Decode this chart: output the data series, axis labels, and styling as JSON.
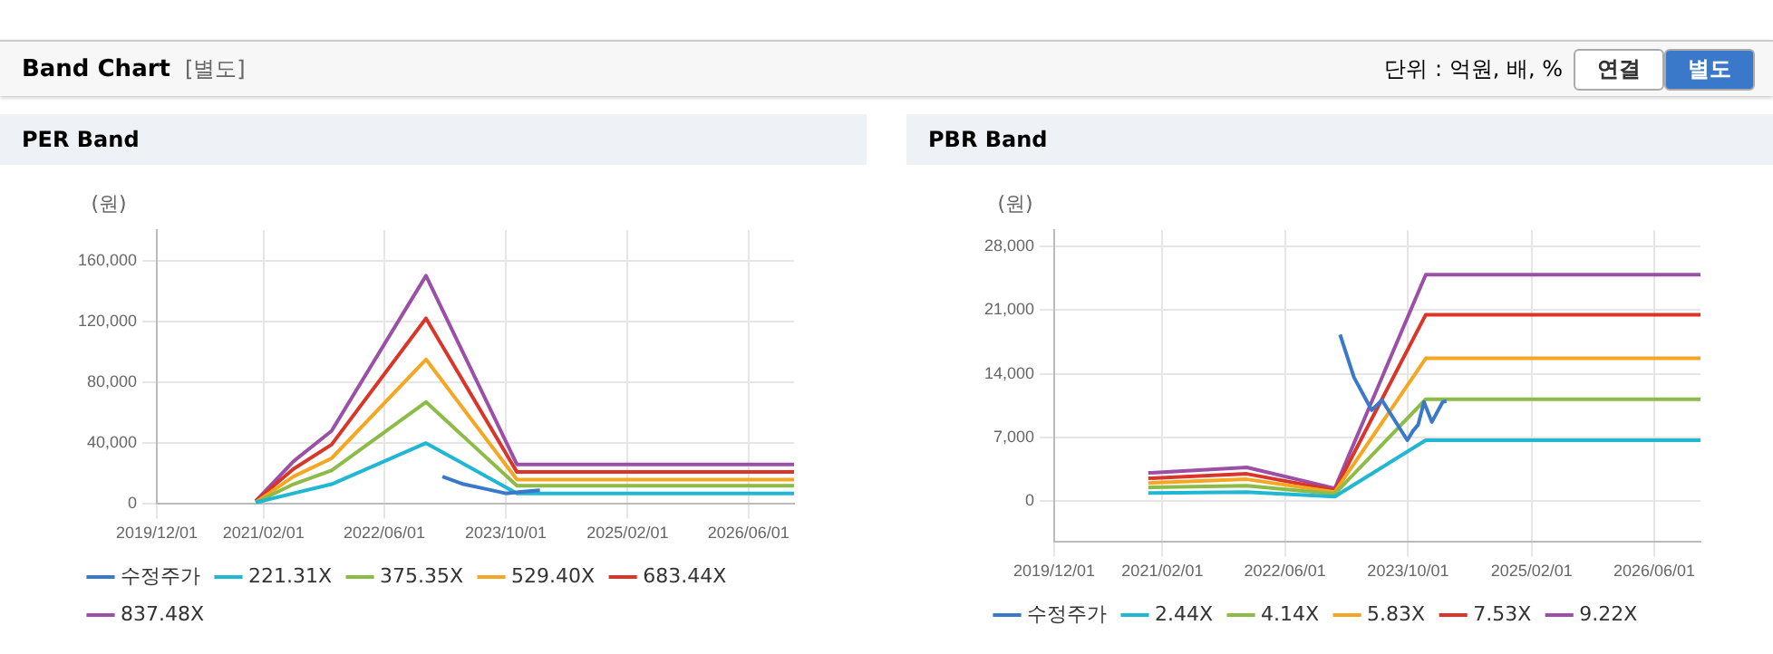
{
  "chart_data": [
    {
      "type": "other",
      "title": "Band Chart",
      "subtitle": "[별도]",
      "annotations": [
        "단위 : 억원, 배, %",
        "연결",
        "별도"
      ]
    },
    {
      "type": "line",
      "title": "PER Band",
      "ylabel": "(원)",
      "grid": true,
      "legend": "bottom",
      "marker": "none",
      "line_style": "solid",
      "x": [
        "2021-01-01",
        "2021-06-01",
        "2021-11-01",
        "2022-11-15",
        "2023-11-15",
        "2026-12-01"
      ],
      "xlim": [
        "2019-12-01",
        "2026-12-01"
      ],
      "xticks": [
        {
          "value": "2019-12-01",
          "label": "2019/12/01"
        },
        {
          "value": "2021-02-01",
          "label": "2021/02/01"
        },
        {
          "value": "2022-06-01",
          "label": "2022/06/01"
        },
        {
          "value": "2023-10-01",
          "label": "2023/10/01"
        },
        {
          "value": "2025-02-01",
          "label": "2025/02/01"
        },
        {
          "value": "2026-06-01",
          "label": "2026/06/01"
        }
      ],
      "ylim": [
        0,
        180000
      ],
      "yticks": [
        {
          "value": 0,
          "label": "0"
        },
        {
          "value": 40000,
          "label": "40,000"
        },
        {
          "value": 80000,
          "label": "80,000"
        },
        {
          "value": 120000,
          "label": "120,000"
        },
        {
          "value": 160000,
          "label": "160,000"
        }
      ],
      "series": [
        {
          "name": "수정주가",
          "color": "#3a78c9",
          "x": [
            "2023-01-20",
            "2023-04-15",
            "2023-07-10",
            "2023-10-01",
            "2023-12-01",
            "2024-02-15"
          ],
          "values": [
            18000,
            13000,
            10000,
            7000,
            8000,
            9000
          ]
        },
        {
          "name": "221.31X",
          "color": "#1fb7d1",
          "values": [
            1000,
            7000,
            13000,
            40000,
            7000,
            7000
          ]
        },
        {
          "name": "375.35X",
          "color": "#8cbc47",
          "values": [
            1000,
            13000,
            22000,
            67000,
            12000,
            12000
          ]
        },
        {
          "name": "529.40X",
          "color": "#f5a623",
          "values": [
            1000,
            18000,
            30000,
            95000,
            16000,
            16000
          ]
        },
        {
          "name": "683.44X",
          "color": "#d9352a",
          "values": [
            2000,
            23000,
            39000,
            122000,
            21000,
            21000
          ]
        },
        {
          "name": "837.48X",
          "color": "#9b4fa6",
          "values": [
            2000,
            28000,
            48000,
            150000,
            26000,
            26000
          ]
        }
      ]
    },
    {
      "type": "line",
      "title": "PBR Band",
      "ylabel": "(원)",
      "grid": true,
      "legend": "bottom",
      "marker": "none",
      "line_style": "solid",
      "x": [
        "2020-12-07",
        "2022-01-01",
        "2022-12-15",
        "2023-12-10",
        "2026-12-01"
      ],
      "xlim": [
        "2019-12-01",
        "2026-12-01"
      ],
      "xticks": [
        {
          "value": "2019-12-01",
          "label": "2019/12/01"
        },
        {
          "value": "2021-02-01",
          "label": "2021/02/01"
        },
        {
          "value": "2022-06-01",
          "label": "2022/06/01"
        },
        {
          "value": "2023-10-01",
          "label": "2023/10/01"
        },
        {
          "value": "2025-02-01",
          "label": "2025/02/01"
        },
        {
          "value": "2026-06-01",
          "label": "2026/06/01"
        }
      ],
      "ylim": [
        -4500,
        29800
      ],
      "yticks": [
        {
          "value": 0,
          "label": "0"
        },
        {
          "value": 7000,
          "label": "7,000"
        },
        {
          "value": 14000,
          "label": "14,000"
        },
        {
          "value": 21000,
          "label": "21,000"
        },
        {
          "value": 28000,
          "label": "28,000"
        }
      ],
      "series": [
        {
          "name": "수정주가",
          "color": "#3a78c9",
          "x": [
            "2023-01-05",
            "2023-03-01",
            "2023-05-10",
            "2023-06-20",
            "2023-09-28",
            "2023-10-20",
            "2023-11-10",
            "2023-12-03",
            "2024-01-03",
            "2024-02-15",
            "2024-03-01"
          ],
          "values": [
            18300,
            13600,
            10000,
            11100,
            6700,
            7700,
            8400,
            10900,
            8700,
            10900,
            11000
          ]
        },
        {
          "name": "2.44X",
          "color": "#1fb7d1",
          "values": [
            900,
            1000,
            500,
            6700,
            6700
          ]
        },
        {
          "name": "4.14X",
          "color": "#8cbc47",
          "values": [
            1500,
            1700,
            800,
            11200,
            11200
          ]
        },
        {
          "name": "5.83X",
          "color": "#f5a623",
          "values": [
            2000,
            2400,
            1000,
            15700,
            15700
          ]
        },
        {
          "name": "7.53X",
          "color": "#d9352a",
          "values": [
            2500,
            3000,
            1200,
            20500,
            20500
          ]
        },
        {
          "name": "9.22X",
          "color": "#9b4fa6",
          "values": [
            3100,
            3700,
            1400,
            24900,
            24900
          ]
        }
      ]
    }
  ]
}
